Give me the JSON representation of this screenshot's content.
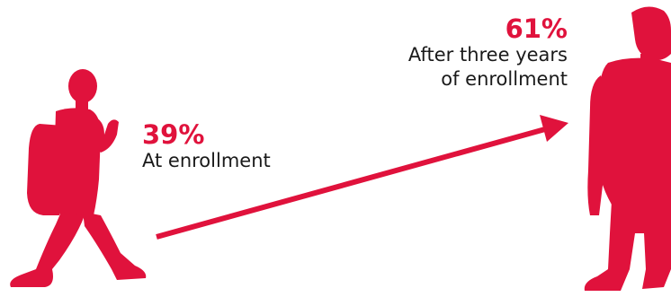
{
  "colors": {
    "accent": "#e0123c",
    "text": "#1a1a1a"
  },
  "stats": {
    "start": {
      "value": "39%",
      "label": "At enrollment"
    },
    "end": {
      "value": "61%",
      "label_line1": "After three years",
      "label_line2": "of enrollment"
    }
  },
  "icons": {
    "left_figure": "walking-student-with-backpack-icon",
    "right_figure": "standing-young-adult-icon",
    "arrow": "growth-arrow-icon"
  }
}
